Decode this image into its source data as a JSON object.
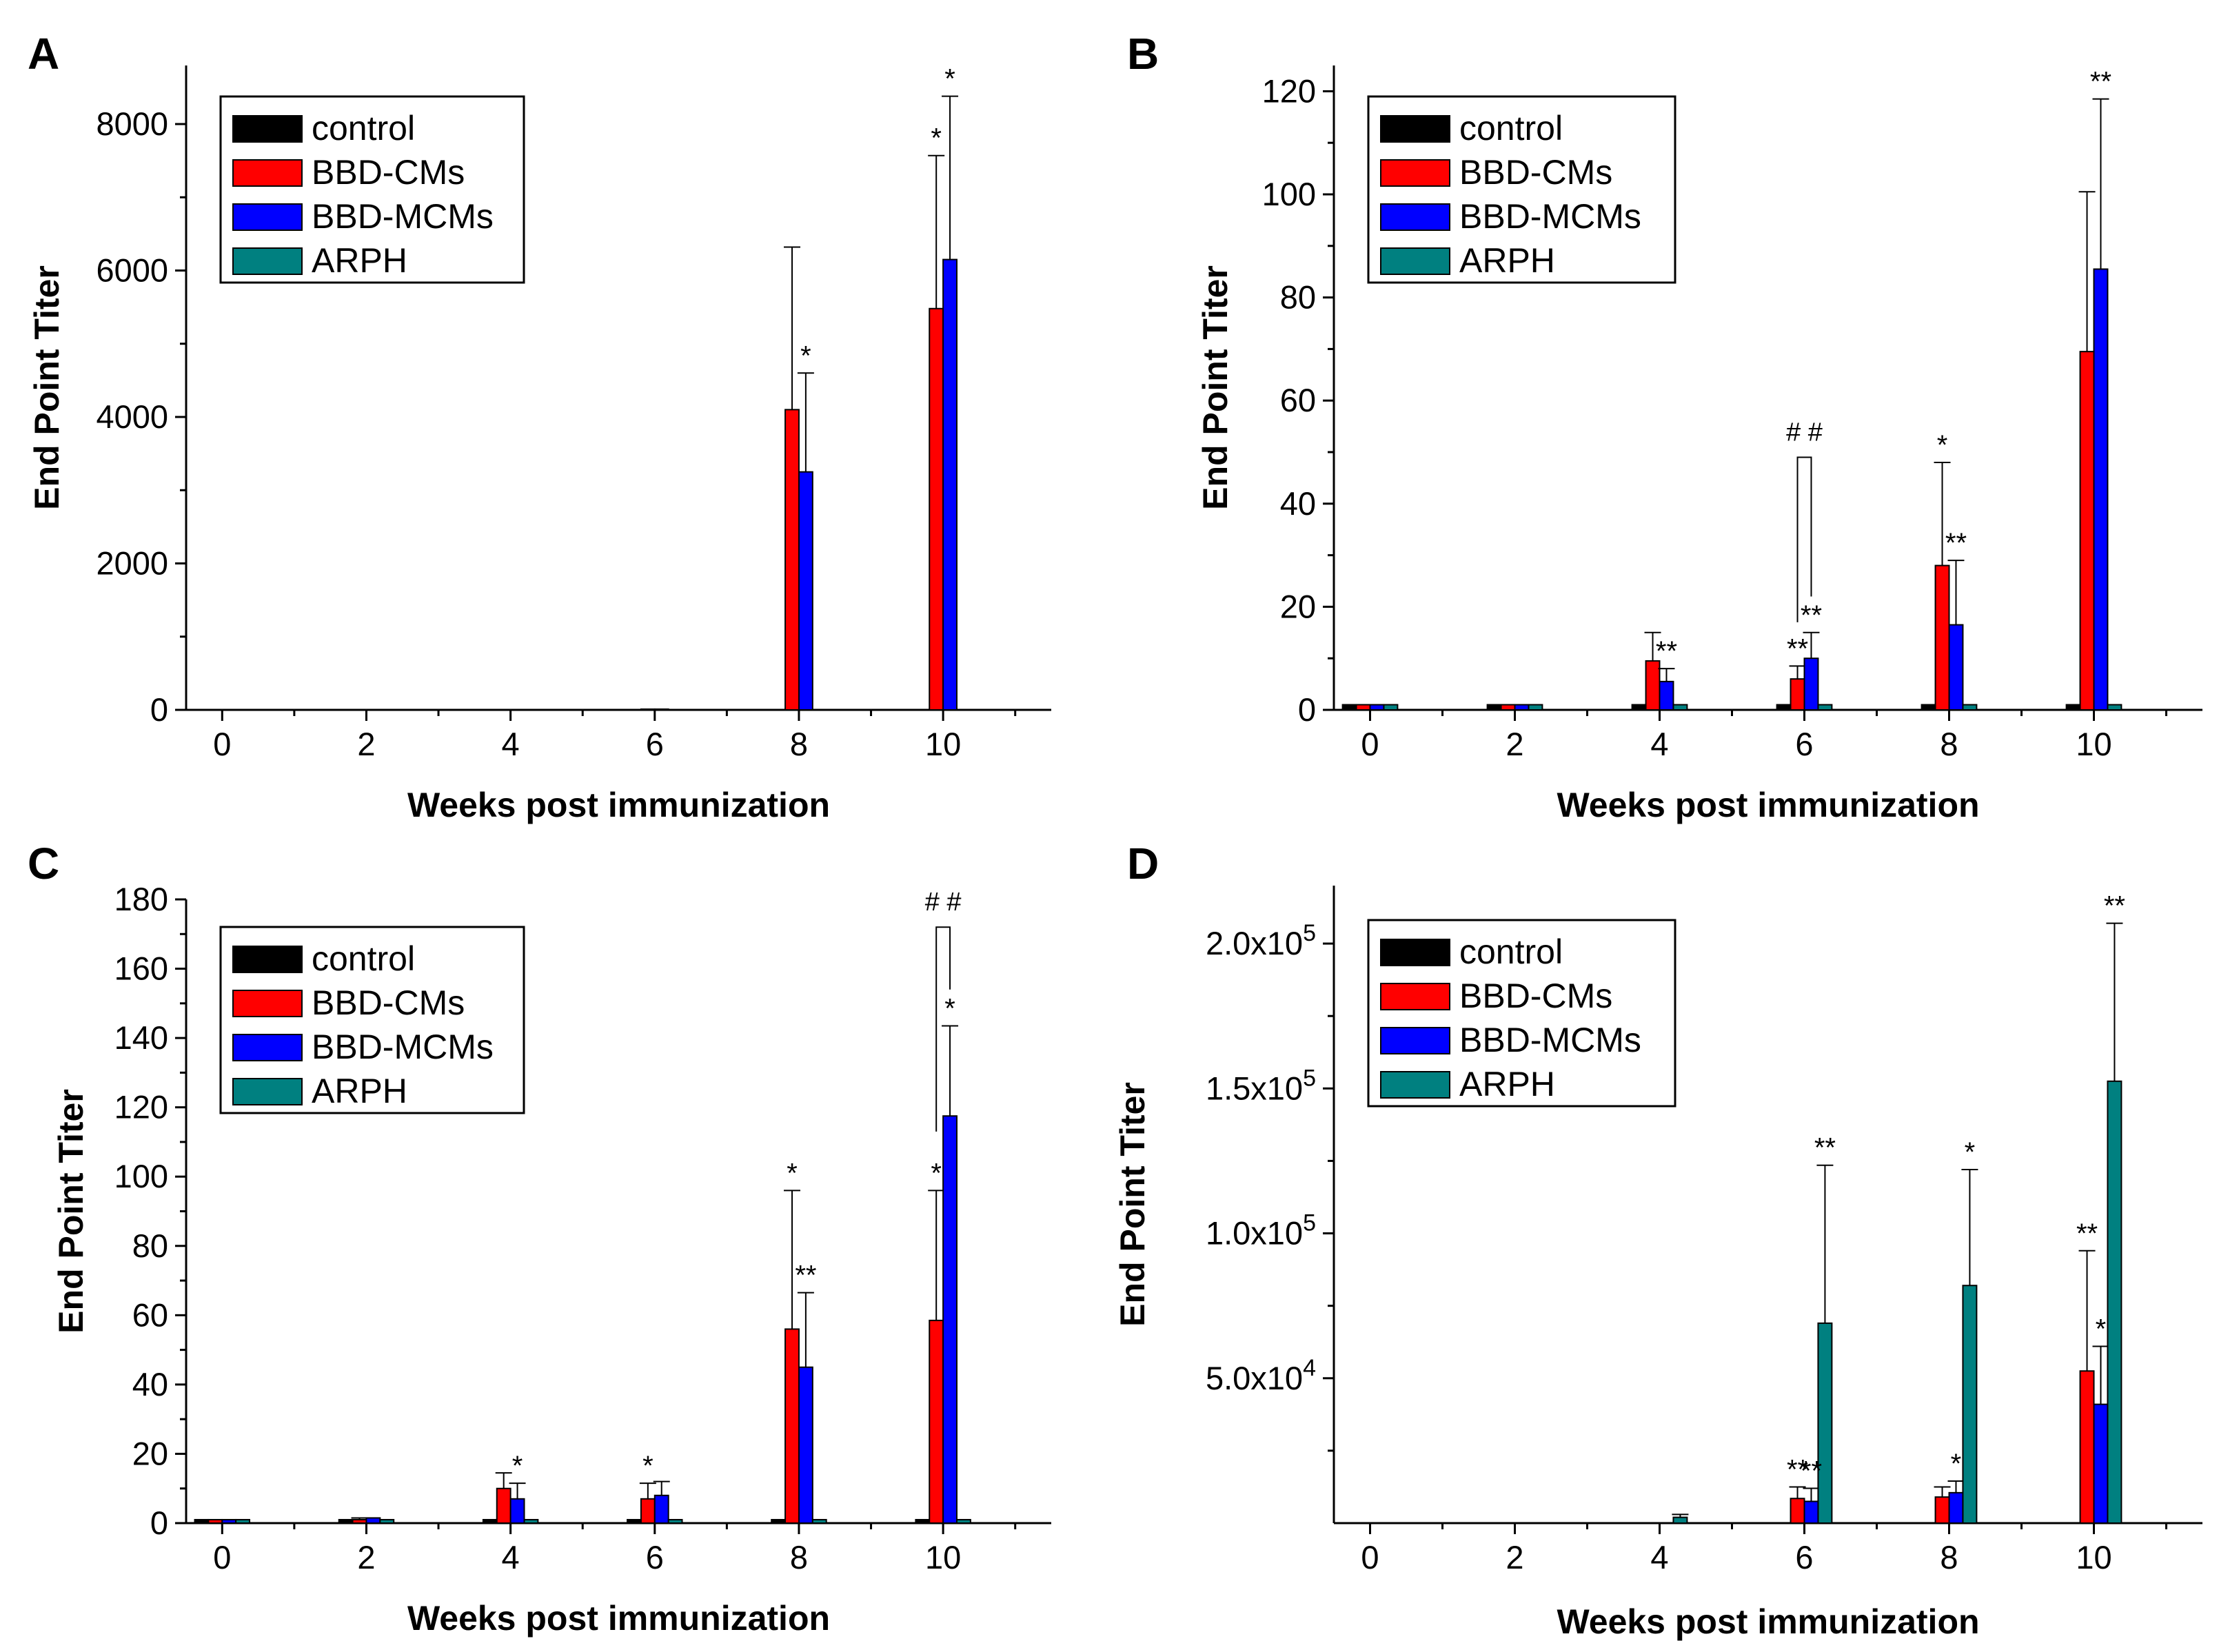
{
  "legend": {
    "entries": [
      {
        "name": "control",
        "color": "#000000"
      },
      {
        "name": "BBD-CMs",
        "color": "#ff0000"
      },
      {
        "name": "BBD-MCMs",
        "color": "#0000ff"
      },
      {
        "name": "ARPH",
        "color": "#008080"
      }
    ]
  },
  "chart_data": [
    {
      "panel": "A",
      "type": "bar",
      "xlabel": "Weeks post immunization",
      "ylabel": "End Point Titer",
      "x": [
        0,
        2,
        4,
        6,
        8,
        10
      ],
      "x_tick_labels": [
        "0",
        "2",
        "4",
        "6",
        "8",
        "10"
      ],
      "xlim": [
        -0.5,
        11.5
      ],
      "ylim": [
        0,
        8800
      ],
      "y_ticks": [
        0,
        2000,
        4000,
        6000,
        8000
      ],
      "y_tick_labels": [
        "0",
        "2000",
        "4000",
        "6000",
        "8000"
      ],
      "legend_position": "top-left",
      "series": [
        {
          "name": "control",
          "values": [
            0,
            0,
            0,
            0,
            0,
            0
          ],
          "errors": [
            0,
            0,
            0,
            0,
            0,
            0
          ]
        },
        {
          "name": "BBD-CMs",
          "values": [
            0,
            0,
            0,
            10,
            4100,
            5480
          ],
          "errors": [
            0,
            0,
            0,
            0,
            2220,
            2090
          ]
        },
        {
          "name": "BBD-MCMs",
          "values": [
            0,
            0,
            0,
            10,
            3250,
            6150
          ],
          "errors": [
            0,
            0,
            0,
            0,
            1350,
            2230
          ]
        },
        {
          "name": "ARPH",
          "values": [
            0,
            0,
            0,
            0,
            0,
            0
          ],
          "errors": [
            0,
            0,
            0,
            0,
            0,
            0
          ]
        }
      ],
      "annotations": [
        {
          "text": "*",
          "series": "BBD-MCMs",
          "x": 8
        },
        {
          "text": "*",
          "series": "BBD-CMs",
          "x": 10
        },
        {
          "text": "*",
          "series": "BBD-MCMs",
          "x": 10
        }
      ],
      "brackets": []
    },
    {
      "panel": "B",
      "type": "bar",
      "xlabel": "Weeks post immunization",
      "ylabel": "End Point Titer",
      "x": [
        0,
        2,
        4,
        6,
        8,
        10
      ],
      "x_tick_labels": [
        "0",
        "2",
        "4",
        "6",
        "8",
        "10"
      ],
      "xlim": [
        -0.5,
        11.5
      ],
      "ylim": [
        0,
        125
      ],
      "y_ticks": [
        0,
        20,
        40,
        60,
        80,
        100,
        120
      ],
      "y_tick_labels": [
        "0",
        "20",
        "40",
        "60",
        "80",
        "100",
        "120"
      ],
      "legend_position": "top-left",
      "series": [
        {
          "name": "control",
          "values": [
            1,
            1,
            1,
            1,
            1,
            1
          ],
          "errors": [
            0,
            0,
            0,
            0,
            0,
            0
          ]
        },
        {
          "name": "BBD-CMs",
          "values": [
            1,
            1,
            9.5,
            6,
            28,
            69.5
          ],
          "errors": [
            0,
            0,
            5.5,
            2.5,
            20,
            31
          ]
        },
        {
          "name": "BBD-MCMs",
          "values": [
            1,
            1,
            5.5,
            10,
            16.5,
            85.5
          ],
          "errors": [
            0,
            0,
            2.5,
            5,
            12.5,
            33
          ]
        },
        {
          "name": "ARPH",
          "values": [
            1,
            1,
            1,
            1,
            1,
            1
          ],
          "errors": [
            0,
            0,
            0,
            0,
            0,
            0
          ]
        }
      ],
      "annotations": [
        {
          "text": "**",
          "series": "BBD-MCMs",
          "x": 4
        },
        {
          "text": "**",
          "series": "BBD-CMs",
          "x": 6
        },
        {
          "text": "**",
          "series": "BBD-MCMs",
          "x": 6
        },
        {
          "text": "*",
          "series": "BBD-CMs",
          "x": 8
        },
        {
          "text": "**",
          "series": "BBD-MCMs",
          "x": 8
        },
        {
          "text": "**",
          "series": "BBD-MCMs",
          "x": 10
        }
      ],
      "brackets": [
        {
          "text": "# #",
          "x": 6,
          "from": "BBD-CMs",
          "to": "BBD-MCMs",
          "top": 49,
          "left_bottom": 17,
          "right_bottom": 22
        }
      ]
    },
    {
      "panel": "C",
      "type": "bar",
      "xlabel": "Weeks post immunization",
      "ylabel": "End Point Titer",
      "x": [
        0,
        2,
        4,
        6,
        8,
        10
      ],
      "x_tick_labels": [
        "0",
        "2",
        "4",
        "6",
        "8",
        "10"
      ],
      "xlim": [
        -0.5,
        11.5
      ],
      "ylim": [
        0,
        180
      ],
      "y_ticks": [
        0,
        20,
        40,
        60,
        80,
        100,
        120,
        140,
        160,
        180
      ],
      "y_tick_labels": [
        "0",
        "20",
        "40",
        "60",
        "80",
        "100",
        "120",
        "140",
        "160",
        "180"
      ],
      "legend_position": "top-left",
      "series": [
        {
          "name": "control",
          "values": [
            1,
            1,
            1,
            1,
            1,
            1
          ],
          "errors": [
            0,
            0,
            0,
            0,
            0,
            0
          ]
        },
        {
          "name": "BBD-CMs",
          "values": [
            1,
            1,
            10,
            7,
            56,
            58.5
          ],
          "errors": [
            0,
            0.5,
            4.5,
            4.5,
            40,
            37.5
          ]
        },
        {
          "name": "BBD-MCMs",
          "values": [
            1,
            1.5,
            7,
            8,
            45,
            117.5
          ],
          "errors": [
            0,
            0,
            4.5,
            4,
            21.5,
            26
          ]
        },
        {
          "name": "ARPH",
          "values": [
            1,
            1,
            1,
            1,
            1,
            1
          ],
          "errors": [
            0,
            0,
            0,
            0,
            0,
            0
          ]
        }
      ],
      "annotations": [
        {
          "text": "*",
          "series": "BBD-MCMs",
          "x": 4
        },
        {
          "text": "*",
          "series": "BBD-CMs",
          "x": 6
        },
        {
          "text": "*",
          "series": "BBD-CMs",
          "x": 8
        },
        {
          "text": "**",
          "series": "BBD-MCMs",
          "x": 8
        },
        {
          "text": "*",
          "series": "BBD-CMs",
          "x": 10
        },
        {
          "text": "*",
          "series": "BBD-MCMs",
          "x": 10
        }
      ],
      "brackets": [
        {
          "text": "# #",
          "x": 10,
          "from": "BBD-CMs",
          "to": "BBD-MCMs",
          "top": 172,
          "left_bottom": 113,
          "right_bottom": 154
        }
      ]
    },
    {
      "panel": "D",
      "type": "bar",
      "xlabel": "Weeks post immunization",
      "ylabel": "End Point Titer",
      "x": [
        0,
        2,
        4,
        6,
        8,
        10
      ],
      "x_tick_labels": [
        "0",
        "2",
        "4",
        "6",
        "8",
        "10"
      ],
      "xlim": [
        -0.5,
        11.5
      ],
      "ylim": [
        0,
        220000
      ],
      "y_ticks": [
        50000,
        100000,
        150000,
        200000
      ],
      "y_tick_labels": [
        {
          "mantissa": "5.0x10",
          "exponent": "4"
        },
        {
          "mantissa": "1.0x10",
          "exponent": "5"
        },
        {
          "mantissa": "1.5x10",
          "exponent": "5"
        },
        {
          "mantissa": "2.0x10",
          "exponent": "5"
        }
      ],
      "legend_position": "top-left",
      "series": [
        {
          "name": "control",
          "values": [
            0,
            0,
            0,
            0,
            0,
            0
          ],
          "errors": [
            0,
            0,
            0,
            0,
            0,
            0
          ]
        },
        {
          "name": "BBD-CMs",
          "values": [
            0,
            0,
            0,
            8500,
            9000,
            52500
          ],
          "errors": [
            0,
            0,
            0,
            4000,
            3500,
            41500
          ]
        },
        {
          "name": "BBD-MCMs",
          "values": [
            0,
            0,
            0,
            7500,
            10500,
            41000
          ],
          "errors": [
            0,
            0,
            0,
            4500,
            4000,
            20000
          ]
        },
        {
          "name": "ARPH",
          "values": [
            0,
            0,
            2000,
            69000,
            82000,
            152500
          ],
          "errors": [
            0,
            0,
            1000,
            54500,
            40000,
            54500
          ]
        }
      ],
      "annotations": [
        {
          "text": "**",
          "series": "BBD-CMs",
          "x": 6
        },
        {
          "text": "**",
          "series": "BBD-MCMs",
          "x": 6
        },
        {
          "text": "**",
          "series": "ARPH",
          "x": 6
        },
        {
          "text": "*",
          "series": "BBD-MCMs",
          "x": 8
        },
        {
          "text": "*",
          "series": "ARPH",
          "x": 8
        },
        {
          "text": "**",
          "series": "BBD-CMs",
          "x": 10
        },
        {
          "text": "*",
          "series": "BBD-MCMs",
          "x": 10
        },
        {
          "text": "**",
          "series": "ARPH",
          "x": 10
        }
      ],
      "brackets": []
    }
  ]
}
